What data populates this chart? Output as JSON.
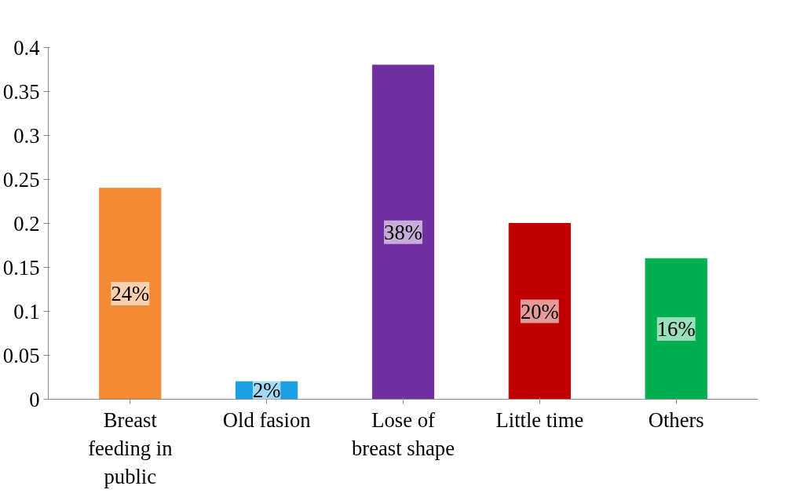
{
  "chart_data": {
    "type": "bar",
    "categories": [
      "Breast feeding in public",
      "Old fasion",
      "Lose of breast shape",
      "Little time",
      "Others"
    ],
    "values": [
      0.24,
      0.02,
      0.38,
      0.2,
      0.16
    ],
    "colors": [
      "#f58a35",
      "#1ba1e2",
      "#7030a0",
      "#c00000",
      "#00b050"
    ],
    "value_labels": [
      "24%",
      "2%",
      "38%",
      "20%",
      "16%"
    ],
    "ylim": [
      0,
      0.4
    ],
    "yticks": [
      0,
      0.05,
      0.1,
      0.15,
      0.2,
      0.25,
      0.3,
      0.35,
      0.4
    ],
    "grid": false
  }
}
